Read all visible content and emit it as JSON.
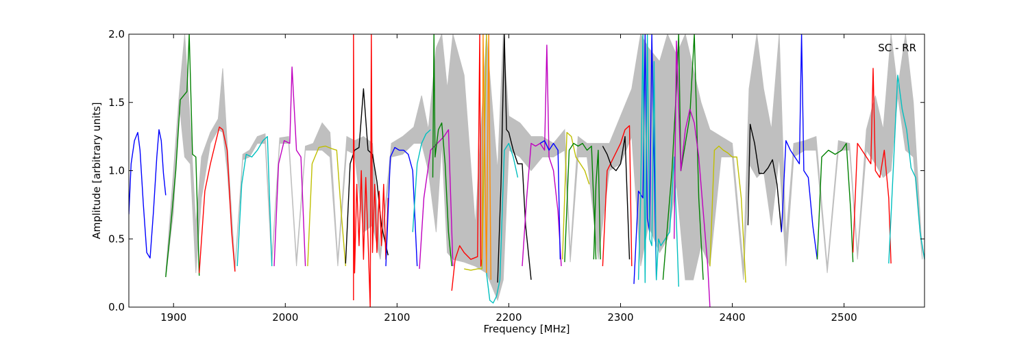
{
  "chart_data": {
    "type": "line",
    "title": "",
    "xlabel": "Frequency [MHz]",
    "ylabel": "Amplitude [arbitrary units]",
    "annotation": "SC - RR",
    "xlim": [
      1860,
      2572
    ],
    "ylim": [
      0.0,
      2.0
    ],
    "xticks": [
      1900,
      2000,
      2100,
      2200,
      2300,
      2400,
      2500
    ],
    "yticks": [
      0.0,
      0.5,
      1.0,
      1.5,
      2.0
    ],
    "xtick_labels": [
      "1900",
      "2000",
      "2100",
      "2200",
      "2300",
      "2400",
      "2500"
    ],
    "ytick_labels": [
      "0.0",
      "0.5",
      "1.0",
      "1.5",
      "2.0"
    ],
    "grid": false,
    "legend": "none",
    "background_envelope": {
      "color": "#bfbfbf",
      "x": [
        1893,
        1900,
        1905,
        1910,
        1915,
        1920,
        1925,
        1933,
        1940,
        1944,
        1948,
        1955,
        1962,
        1968,
        1975,
        1982,
        1988,
        1995,
        2003,
        2010,
        2018,
        2025,
        2033,
        2040,
        2047,
        2055,
        2062,
        2070,
        2078,
        2085,
        2095,
        2105,
        2115,
        2122,
        2128,
        2135,
        2140,
        2145,
        2150,
        2160,
        2170,
        2180,
        2190,
        2195,
        2200,
        2210,
        2220,
        2230,
        2240,
        2250,
        2255,
        2262,
        2270,
        2280,
        2290,
        2300,
        2310,
        2318,
        2325,
        2335,
        2342,
        2350,
        2358,
        2365,
        2372,
        2380,
        2390,
        2400,
        2410,
        2415,
        2422,
        2428,
        2435,
        2442,
        2448,
        2455,
        2465,
        2475,
        2485,
        2495,
        2505,
        2512,
        2520,
        2528,
        2535,
        2542,
        2548,
        2555,
        2562,
        2570
      ],
      "upper": [
        0.25,
        1.0,
        1.55,
        2.0,
        1.35,
        0.6,
        1.1,
        1.28,
        1.38,
        1.75,
        1.2,
        0.3,
        1.12,
        1.15,
        1.25,
        1.27,
        0.35,
        1.24,
        1.25,
        0.35,
        1.18,
        1.2,
        1.35,
        1.28,
        0.35,
        1.25,
        1.22,
        1.25,
        1.2,
        0.4,
        1.2,
        1.25,
        1.32,
        1.55,
        1.3,
        1.9,
        2.0,
        1.6,
        2.0,
        1.7,
        0.6,
        2.0,
        1.0,
        2.0,
        1.4,
        1.35,
        1.25,
        1.25,
        1.2,
        1.3,
        0.4,
        1.25,
        1.2,
        1.2,
        1.2,
        1.4,
        1.6,
        2.0,
        1.9,
        1.8,
        2.0,
        1.85,
        2.0,
        1.75,
        1.5,
        1.3,
        1.25,
        1.2,
        0.3,
        1.6,
        2.0,
        1.6,
        1.3,
        2.0,
        0.5,
        1.2,
        1.22,
        1.25,
        0.3,
        1.22,
        1.2,
        0.4,
        1.3,
        1.55,
        1.3,
        2.0,
        1.6,
        2.0,
        1.5,
        0.4
      ],
      "lower": [
        0.22,
        0.7,
        1.5,
        1.1,
        1.05,
        0.25,
        0.8,
        1.2,
        1.3,
        1.28,
        1.0,
        0.26,
        1.08,
        1.1,
        1.2,
        1.2,
        0.3,
        1.2,
        1.2,
        0.3,
        1.15,
        1.15,
        1.15,
        1.1,
        0.3,
        1.15,
        1.12,
        0.55,
        0.6,
        0.35,
        1.1,
        1.12,
        1.2,
        1.2,
        1.0,
        0.55,
        1.2,
        0.4,
        0.35,
        0.33,
        0.3,
        0.25,
        0.05,
        0.2,
        1.15,
        1.1,
        1.0,
        1.1,
        1.1,
        1.15,
        0.33,
        1.1,
        1.1,
        0.35,
        1.0,
        1.05,
        1.25,
        0.3,
        0.6,
        0.4,
        0.5,
        0.9,
        0.2,
        0.2,
        0.45,
        0.3,
        1.1,
        1.1,
        0.2,
        1.05,
        0.95,
        1.0,
        0.6,
        1.1,
        0.3,
        1.1,
        1.15,
        1.15,
        0.25,
        1.15,
        1.15,
        0.35,
        1.15,
        1.05,
        0.95,
        1.0,
        1.55,
        1.15,
        1.1,
        0.35
      ]
    },
    "series": [
      {
        "color": "#0000ff",
        "x": [
          1860,
          1862,
          1865,
          1868,
          1870,
          1873,
          1876,
          1879,
          1882,
          1885,
          1887,
          1889,
          1891,
          1893
        ],
        "y": [
          0.68,
          1.05,
          1.22,
          1.28,
          1.15,
          0.75,
          0.4,
          0.36,
          0.7,
          1.1,
          1.3,
          1.22,
          0.98,
          0.82
        ]
      },
      {
        "color": "#008000",
        "x": [
          1893,
          1897,
          1902,
          1906,
          1909,
          1912,
          1914,
          1917,
          1920,
          1923
        ],
        "y": [
          0.22,
          0.55,
          1.0,
          1.52,
          1.55,
          1.58,
          2.0,
          1.12,
          1.1,
          0.23
        ]
      },
      {
        "color": "#ff0000",
        "x": [
          1923,
          1928,
          1933,
          1938,
          1941,
          1944,
          1948,
          1952,
          1955
        ],
        "y": [
          0.25,
          0.85,
          1.05,
          1.22,
          1.32,
          1.3,
          1.15,
          0.55,
          0.26
        ]
      },
      {
        "color": "#00bfbf",
        "x": [
          1957,
          1961,
          1965,
          1970,
          1975,
          1980,
          1984,
          1988
        ],
        "y": [
          0.3,
          0.9,
          1.12,
          1.1,
          1.15,
          1.22,
          1.25,
          0.3
        ]
      },
      {
        "color": "#bf00bf",
        "x": [
          1990,
          1994,
          1999,
          2004,
          2006,
          2010,
          2014,
          2018
        ],
        "y": [
          0.3,
          1.05,
          1.22,
          1.2,
          1.76,
          1.15,
          1.1,
          0.3
        ]
      },
      {
        "color": "#bfbf00",
        "x": [
          2020,
          2024,
          2030,
          2036,
          2042,
          2046,
          2050,
          2054
        ],
        "y": [
          0.3,
          1.05,
          1.17,
          1.18,
          1.16,
          1.15,
          0.7,
          0.3
        ]
      },
      {
        "color": "#000000",
        "x": [
          2054,
          2058,
          2062,
          2066,
          2070,
          2074,
          2078,
          2082,
          2086,
          2092
        ],
        "y": [
          0.32,
          1.05,
          1.15,
          1.17,
          1.6,
          1.15,
          1.12,
          0.92,
          0.6,
          0.38
        ]
      },
      {
        "color": "#ff0000",
        "x": [
          2061,
          2061,
          2062,
          2064,
          2066,
          2068,
          2070,
          2072,
          2074,
          2076,
          2077,
          2078,
          2080,
          2082,
          2084,
          2086,
          2088,
          2090,
          2092
        ],
        "y": [
          0.05,
          2.0,
          0.25,
          0.9,
          0.45,
          1.0,
          0.35,
          0.95,
          0.5,
          0.0,
          2.0,
          0.4,
          0.9,
          0.4,
          0.85,
          0.45,
          0.9,
          0.35,
          0.8
        ]
      },
      {
        "color": "#0000ff",
        "x": [
          2090,
          2094,
          2098,
          2102,
          2106,
          2110,
          2114,
          2118
        ],
        "y": [
          0.3,
          1.1,
          1.17,
          1.15,
          1.15,
          1.12,
          1.0,
          0.3
        ]
      },
      {
        "color": "#00bfbf",
        "x": [
          2114,
          2118,
          2122,
          2126,
          2130
        ],
        "y": [
          0.55,
          1.05,
          1.2,
          1.27,
          1.3
        ]
      },
      {
        "color": "#bf00bf",
        "x": [
          2120,
          2124,
          2130,
          2136,
          2142,
          2146,
          2150
        ],
        "y": [
          0.28,
          0.8,
          1.15,
          1.2,
          1.25,
          1.3,
          0.3
        ]
      },
      {
        "color": "#008000",
        "x": [
          2132,
          2133,
          2134,
          2137,
          2140,
          2143,
          2146,
          2149
        ],
        "y": [
          0.95,
          2.0,
          1.1,
          1.3,
          1.35,
          1.05,
          0.55,
          0.3
        ]
      },
      {
        "color": "#ff0000",
        "x": [
          2149,
          2152,
          2156,
          2160,
          2166,
          2172,
          2174,
          2175,
          2176
        ],
        "y": [
          0.12,
          0.35,
          0.45,
          0.4,
          0.35,
          0.37,
          2.0,
          0.3,
          0.35
        ]
      },
      {
        "color": "#bfbf00",
        "x": [
          2160,
          2166,
          2172,
          2176,
          2180
        ],
        "y": [
          0.28,
          0.27,
          0.28,
          0.28,
          2.0
        ]
      },
      {
        "color": "#ff8c00",
        "x": [
          2176,
          2177,
          2180,
          2182,
          2184
        ],
        "y": [
          0.35,
          2.0,
          0.25,
          2.0,
          0.2
        ]
      },
      {
        "color": "#00bfbf",
        "x": [
          2180,
          2183,
          2186,
          2189,
          2192,
          2196,
          2200,
          2204,
          2208
        ],
        "y": [
          0.25,
          0.05,
          0.03,
          0.08,
          0.2,
          1.15,
          1.2,
          1.1,
          0.95
        ]
      },
      {
        "color": "#000000",
        "x": [
          2190,
          2193,
          2196,
          2198,
          2200,
          2204,
          2208,
          2212,
          2215,
          2220
        ],
        "y": [
          0.18,
          0.9,
          2.0,
          1.3,
          1.28,
          1.15,
          1.05,
          1.05,
          0.6,
          0.2
        ]
      },
      {
        "color": "#bf00bf",
        "x": [
          2212,
          2216,
          2220,
          2224,
          2228,
          2232,
          2234,
          2236,
          2240,
          2244,
          2247
        ],
        "y": [
          0.3,
          0.8,
          1.2,
          1.18,
          1.2,
          1.15,
          1.92,
          1.1,
          1.0,
          0.7,
          0.3
        ]
      },
      {
        "color": "#0000ff",
        "x": [
          2228,
          2232,
          2236,
          2240,
          2244,
          2246
        ],
        "y": [
          1.2,
          1.22,
          1.15,
          1.2,
          1.15,
          0.35
        ]
      },
      {
        "color": "#bfbf00",
        "x": [
          2248,
          2252,
          2256,
          2260,
          2264,
          2268,
          2272
        ],
        "y": [
          0.35,
          1.28,
          1.25,
          1.1,
          1.05,
          1.0,
          0.9
        ]
      },
      {
        "color": "#008000",
        "x": [
          2250,
          2254,
          2258,
          2262,
          2266,
          2270,
          2274,
          2278
        ],
        "y": [
          0.33,
          1.15,
          1.2,
          1.18,
          1.2,
          1.15,
          1.18,
          0.35
        ]
      },
      {
        "color": "#008000",
        "x": [
          2276,
          2278,
          2280,
          2282
        ],
        "y": [
          0.35,
          0.9,
          1.15,
          0.35
        ]
      },
      {
        "color": "#ff0000",
        "x": [
          2284,
          2288,
          2294,
          2300,
          2304,
          2308,
          2310
        ],
        "y": [
          0.3,
          1.0,
          1.1,
          1.2,
          1.3,
          1.33,
          0.3
        ]
      },
      {
        "color": "#000000",
        "x": [
          2284,
          2288,
          2292,
          2296,
          2300,
          2304,
          2308
        ],
        "y": [
          1.18,
          1.12,
          1.03,
          1.0,
          1.05,
          1.25,
          0.35
        ]
      },
      {
        "color": "#0000ff",
        "x": [
          2312,
          2316,
          2320,
          2322,
          2324,
          2326,
          2328,
          2332
        ],
        "y": [
          0.17,
          0.85,
          0.8,
          2.0,
          0.65,
          0.55,
          2.0,
          0.2
        ]
      },
      {
        "color": "#00bfbf",
        "x": [
          2316,
          2318,
          2320,
          2322,
          2324,
          2326,
          2328,
          2330,
          2332,
          2334,
          2336,
          2340,
          2344,
          2348,
          2352
        ],
        "y": [
          0.2,
          0.8,
          2.0,
          0.18,
          2.0,
          0.5,
          0.45,
          1.8,
          0.2,
          0.5,
          0.45,
          0.5,
          0.55,
          1.1,
          0.15
        ]
      },
      {
        "color": "#008000",
        "x": [
          2338,
          2342,
          2346,
          2350,
          2352,
          2354,
          2358,
          2362,
          2366,
          2370,
          2374
        ],
        "y": [
          0.2,
          0.6,
          1.0,
          1.6,
          2.0,
          1.0,
          1.2,
          1.4,
          2.0,
          0.8,
          0.2
        ]
      },
      {
        "color": "#bf00bf",
        "x": [
          2348,
          2350,
          2354,
          2358,
          2362,
          2366,
          2370,
          2374,
          2378,
          2380
        ],
        "y": [
          0.5,
          1.95,
          1.0,
          1.3,
          1.45,
          1.35,
          1.1,
          0.7,
          0.3,
          0.0
        ]
      },
      {
        "color": "#bfbf00",
        "x": [
          2380,
          2384,
          2388,
          2392,
          2396,
          2400,
          2404,
          2408,
          2412
        ],
        "y": [
          0.3,
          1.15,
          1.18,
          1.15,
          1.13,
          1.1,
          1.1,
          0.8,
          0.18
        ]
      },
      {
        "color": "#000000",
        "x": [
          2414,
          2416,
          2420,
          2424,
          2428,
          2432,
          2436,
          2440,
          2444
        ],
        "y": [
          0.6,
          1.34,
          1.2,
          0.98,
          0.98,
          1.02,
          1.08,
          0.9,
          0.55
        ]
      },
      {
        "color": "#0000ff",
        "x": [
          2444,
          2448,
          2452,
          2456,
          2460,
          2462,
          2464,
          2468,
          2472,
          2476
        ],
        "y": [
          0.55,
          1.22,
          1.15,
          1.1,
          1.05,
          2.0,
          1.0,
          0.95,
          0.6,
          0.35
        ]
      },
      {
        "color": "#008000",
        "x": [
          2476,
          2480,
          2486,
          2492,
          2498,
          2502,
          2506,
          2508
        ],
        "y": [
          0.35,
          1.1,
          1.15,
          1.12,
          1.15,
          1.2,
          0.7,
          0.33
        ]
      },
      {
        "color": "#ff0000",
        "x": [
          2508,
          2512,
          2516,
          2520,
          2524,
          2526,
          2528,
          2532,
          2536,
          2540,
          2542
        ],
        "y": [
          0.4,
          1.2,
          1.15,
          1.1,
          1.05,
          1.75,
          1.0,
          0.95,
          1.15,
          0.8,
          0.32
        ]
      },
      {
        "color": "#00bfbf",
        "x": [
          2540,
          2544,
          2548,
          2552,
          2556,
          2560,
          2564,
          2568,
          2572
        ],
        "y": [
          0.32,
          1.0,
          1.7,
          1.45,
          1.3,
          1.02,
          0.95,
          0.55,
          0.35
        ]
      }
    ]
  }
}
